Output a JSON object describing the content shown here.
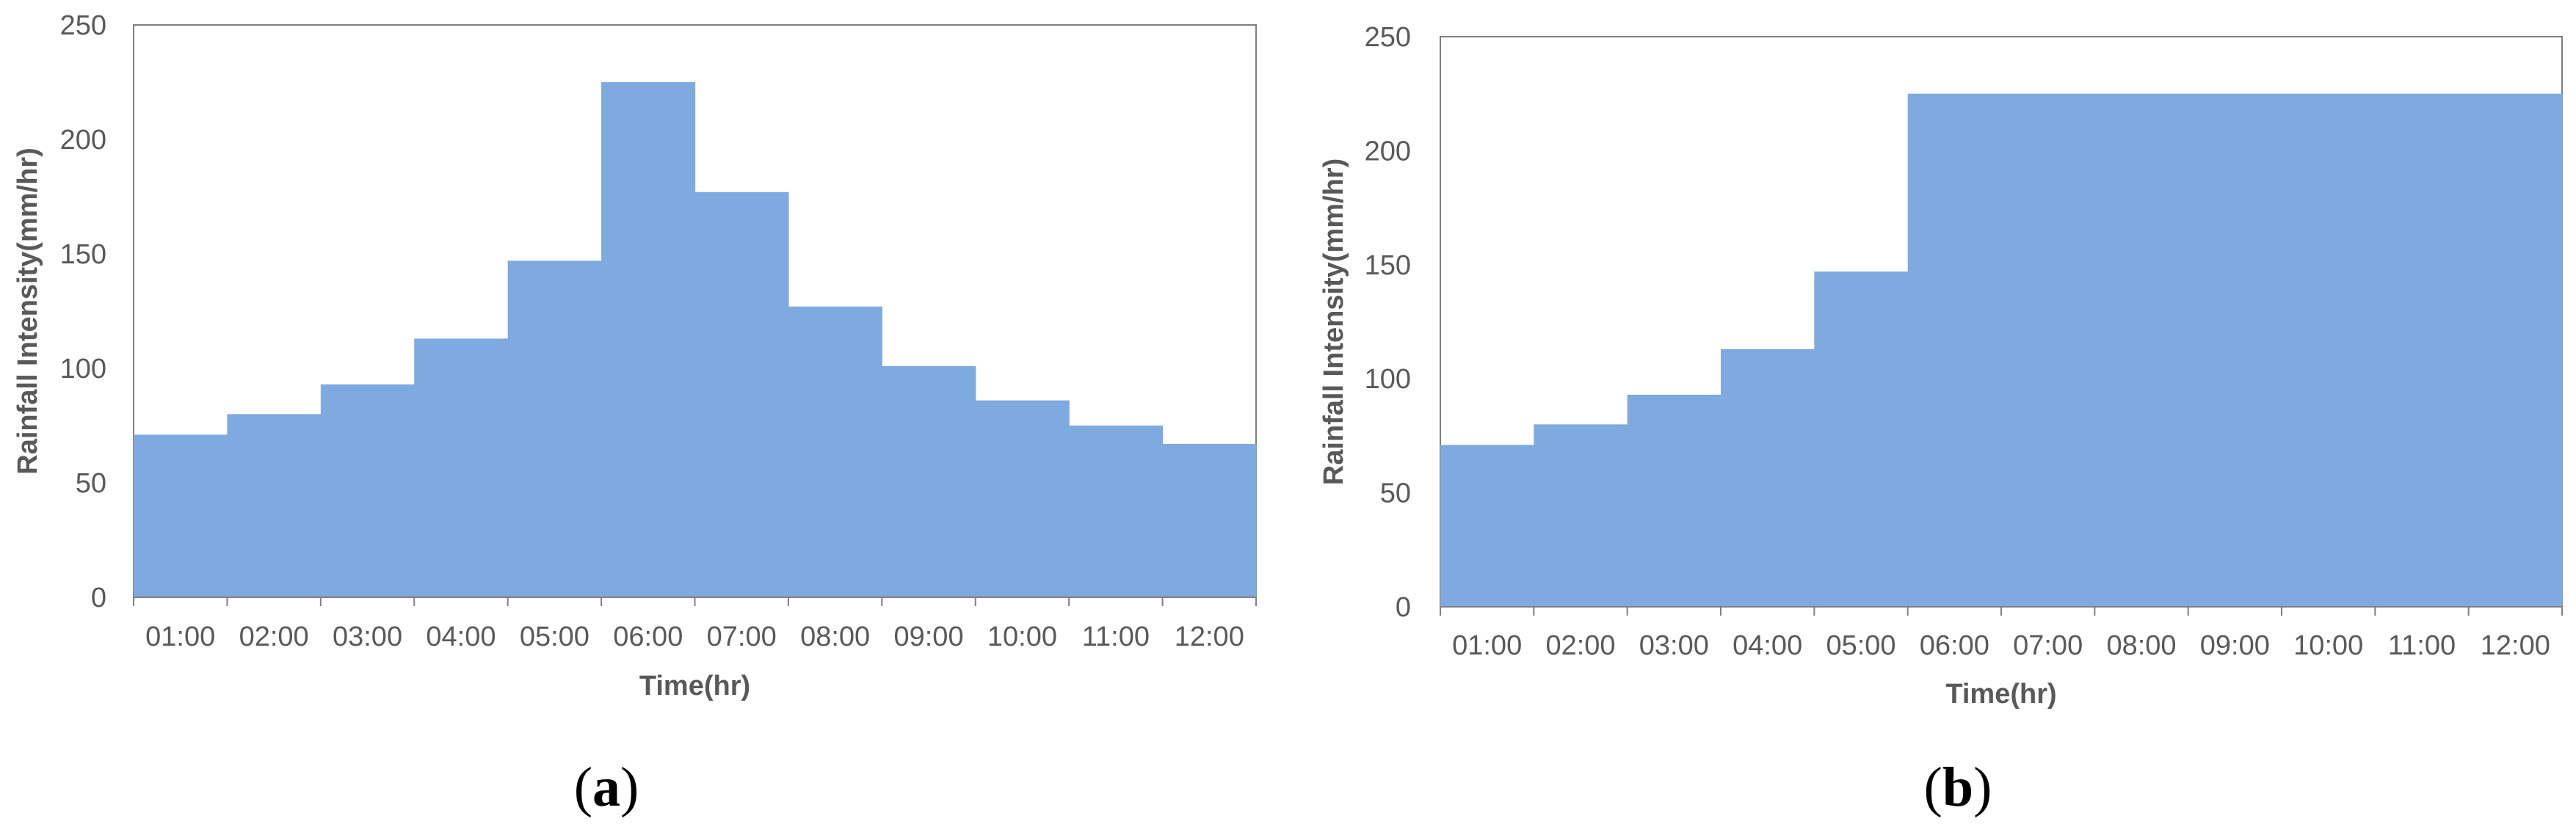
{
  "colors": {
    "bar_fill": "#7FAADF",
    "axis_line": "#808080",
    "text": "#595959",
    "background": "#FFFFFF"
  },
  "chart_data": [
    {
      "type": "bar",
      "panel_label": {
        "open": "(",
        "letter": "a",
        "close": ")"
      },
      "xlabel": "Time(hr)",
      "ylabel": "Rainfall Intensity(mm/hr)",
      "ylim": [
        0,
        250
      ],
      "yticks": [
        "0",
        "50",
        "100",
        "150",
        "200",
        "250"
      ],
      "categories": [
        "01:00",
        "02:00",
        "03:00",
        "04:00",
        "05:00",
        "06:00",
        "07:00",
        "08:00",
        "09:00",
        "10:00",
        "11:00",
        "12:00"
      ],
      "values": [
        71,
        80,
        93,
        113,
        147,
        225,
        177,
        127,
        101,
        86,
        75,
        67
      ],
      "grid": false,
      "legend": "none"
    },
    {
      "type": "bar",
      "panel_label": {
        "open": "(",
        "letter": "b",
        "close": ")"
      },
      "xlabel": "Time(hr)",
      "ylabel": "Rainfall Intensity(mm/hr)",
      "ylim": [
        0,
        250
      ],
      "yticks": [
        "0",
        "50",
        "100",
        "150",
        "200",
        "250"
      ],
      "categories": [
        "01:00",
        "02:00",
        "03:00",
        "04:00",
        "05:00",
        "06:00",
        "07:00",
        "08:00",
        "09:00",
        "10:00",
        "11:00",
        "12:00"
      ],
      "values": [
        71,
        80,
        93,
        113,
        147,
        225,
        225,
        225,
        225,
        225,
        225,
        225
      ],
      "grid": false,
      "legend": "none"
    }
  ]
}
